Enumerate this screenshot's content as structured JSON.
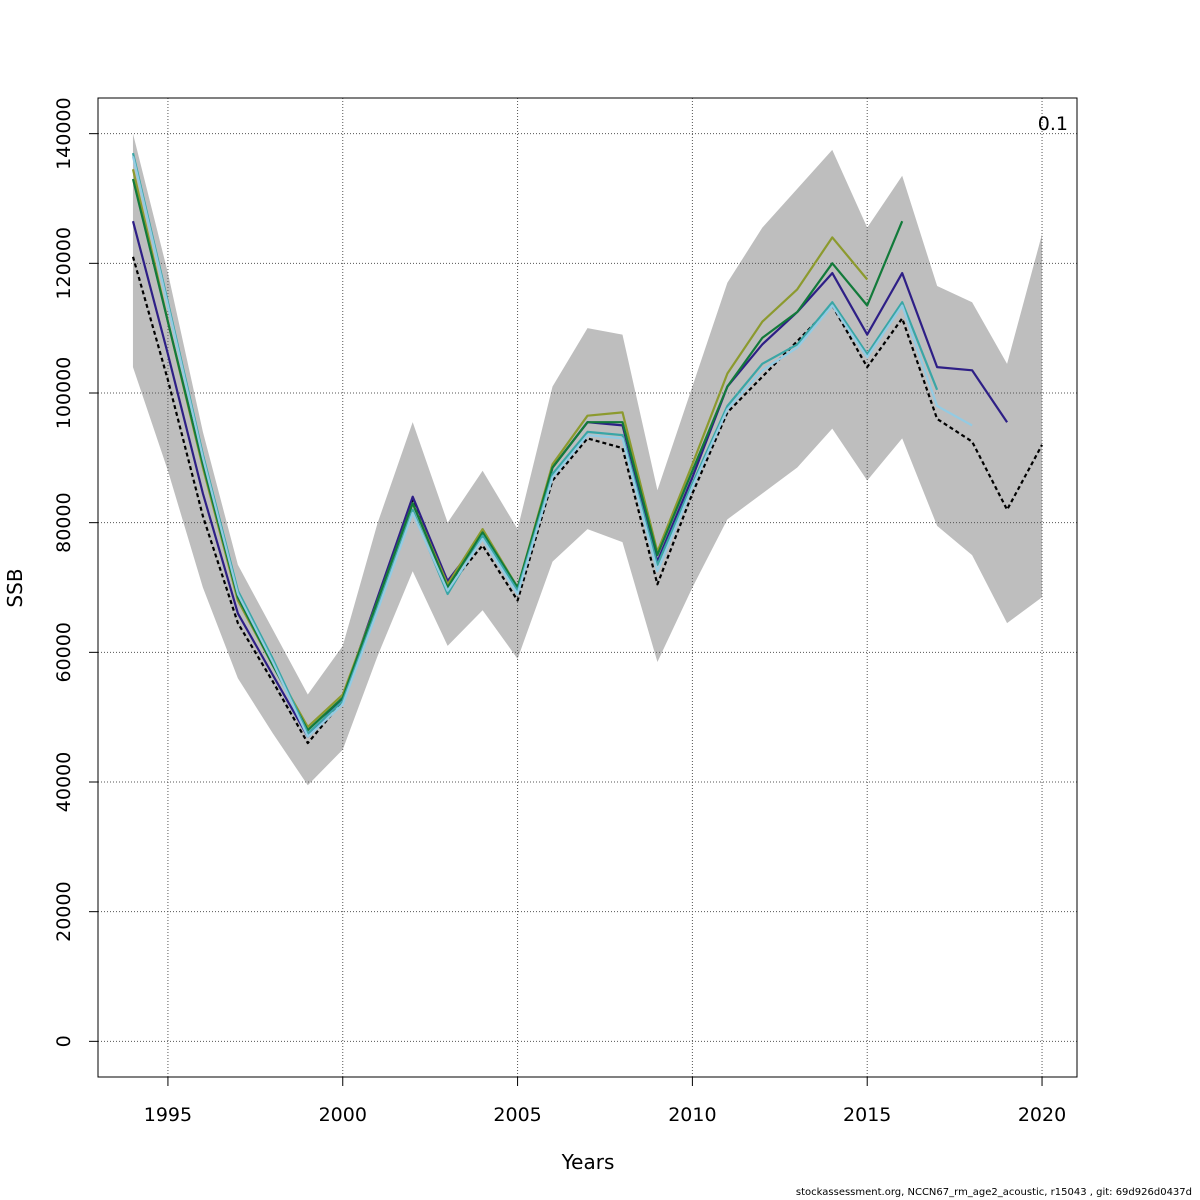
{
  "chart_data": {
    "type": "line",
    "title": "",
    "xlabel": "Years",
    "ylabel": "SSB",
    "xlim": [
      1993,
      2021
    ],
    "ylim": [
      -5500,
      145500
    ],
    "x_ticks": [
      1995,
      2000,
      2005,
      2010,
      2015,
      2020
    ],
    "y_ticks": [
      0,
      20000,
      40000,
      60000,
      80000,
      100000,
      120000,
      140000
    ],
    "grid": true,
    "annotation": "0.1",
    "colors": {
      "band": "#bebebe",
      "base": "#000000",
      "navy": "#2e1f86",
      "olive": "#8c9a2e",
      "green": "#127a3a",
      "teal": "#3aa6a6",
      "lightblue": "#93cbe3"
    },
    "band": {
      "x": [
        1994,
        1995,
        1996,
        1997,
        1998,
        1999,
        2000,
        2001,
        2002,
        2003,
        2004,
        2005,
        2006,
        2007,
        2008,
        2009,
        2010,
        2011,
        2012,
        2013,
        2014,
        2015,
        2016,
        2017,
        2018,
        2019,
        2020
      ],
      "upper": [
        140000,
        118500,
        94000,
        73500,
        63500,
        53500,
        61000,
        80000,
        95500,
        80000,
        88000,
        79000,
        101000,
        110000,
        109000,
        85000,
        101000,
        117000,
        125500,
        131500,
        137500,
        125500,
        133500,
        116500,
        114000,
        104500,
        124500
      ],
      "lower": [
        104000,
        88000,
        70000,
        56000,
        47500,
        39500,
        45000,
        59500,
        72500,
        61000,
        66500,
        59000,
        74000,
        79000,
        77000,
        58500,
        70000,
        80500,
        84500,
        88500,
        94500,
        86500,
        93000,
        79500,
        75000,
        64500,
        68500
      ]
    },
    "series": [
      {
        "color_key": "base",
        "dashed": true,
        "x": [
          1994,
          1995,
          1996,
          1997,
          1998,
          1999,
          2000,
          2001,
          2002,
          2003,
          2004,
          2005,
          2006,
          2007,
          2008,
          2009,
          2010,
          2011,
          2012,
          2013,
          2014,
          2015,
          2016,
          2017,
          2018,
          2019,
          2020
        ],
        "values": [
          121000,
          102000,
          81000,
          64500,
          55500,
          46000,
          52500,
          68000,
          83500,
          70000,
          76500,
          68000,
          86500,
          93000,
          91500,
          70500,
          84500,
          97000,
          102500,
          108000,
          113500,
          104000,
          111500,
          96000,
          92500,
          82000,
          92000
        ]
      },
      {
        "color_key": "navy",
        "dashed": false,
        "x": [
          1994,
          1995,
          1996,
          1997,
          1998,
          1999,
          2000,
          2001,
          2002,
          2003,
          2004,
          2005,
          2006,
          2007,
          2008,
          2009,
          2010,
          2011,
          2012,
          2013,
          2014,
          2015,
          2016,
          2017,
          2018,
          2019
        ],
        "values": [
          126500,
          106000,
          84500,
          66000,
          56500,
          47000,
          53000,
          68500,
          84000,
          71000,
          78000,
          69500,
          88500,
          95500,
          95000,
          74000,
          87000,
          101000,
          107500,
          112500,
          118500,
          109000,
          118500,
          104000,
          103500,
          95500
        ]
      },
      {
        "color_key": "olive",
        "dashed": false,
        "x": [
          1994,
          1995,
          1996,
          1997,
          1998,
          1999,
          2000,
          2001,
          2002,
          2003,
          2004,
          2005,
          2006,
          2007,
          2008,
          2009,
          2010,
          2011,
          2012,
          2013,
          2014,
          2015
        ],
        "values": [
          134500,
          111000,
          88500,
          68000,
          58000,
          48500,
          53500,
          68000,
          83000,
          70500,
          79000,
          70000,
          89000,
          96500,
          97000,
          75500,
          89000,
          103000,
          111000,
          116000,
          124000,
          117500
        ]
      },
      {
        "color_key": "green",
        "dashed": false,
        "x": [
          1994,
          1995,
          1996,
          1997,
          1998,
          1999,
          2000,
          2001,
          2002,
          2003,
          2004,
          2005,
          2006,
          2007,
          2008,
          2009,
          2010,
          2011,
          2012,
          2013,
          2014,
          2015,
          2016
        ],
        "values": [
          133000,
          111000,
          89000,
          68500,
          58000,
          48000,
          53000,
          68000,
          83000,
          70000,
          78500,
          70000,
          88500,
          95500,
          95500,
          75000,
          88000,
          101000,
          108500,
          112500,
          120000,
          113500,
          126500
        ]
      },
      {
        "color_key": "teal",
        "dashed": false,
        "x": [
          1994,
          1995,
          1996,
          1997,
          1998,
          1999,
          2000,
          2001,
          2002,
          2003,
          2004,
          2005,
          2006,
          2007,
          2008,
          2009,
          2010,
          2011,
          2012,
          2013,
          2014,
          2015,
          2016,
          2017
        ],
        "values": [
          137000,
          114000,
          90500,
          69500,
          59000,
          47500,
          52500,
          67000,
          82000,
          69000,
          78000,
          69500,
          87500,
          94000,
          93500,
          73500,
          86000,
          98000,
          104500,
          107500,
          114000,
          106000,
          114000,
          100500
        ]
      },
      {
        "color_key": "lightblue",
        "dashed": false,
        "x": [
          1994,
          1995,
          1996,
          1997,
          1998,
          1999,
          2000,
          2001,
          2002,
          2003,
          2004,
          2005,
          2006,
          2007,
          2008,
          2009,
          2010,
          2011,
          2012,
          2013,
          2014,
          2015,
          2016,
          2017,
          2018
        ],
        "values": [
          136500,
          113500,
          90000,
          69000,
          58500,
          47000,
          52000,
          66500,
          81500,
          69500,
          77500,
          69000,
          87000,
          93500,
          93000,
          72500,
          85500,
          97500,
          103500,
          107000,
          113500,
          105500,
          113500,
          98000,
          95000
        ]
      }
    ]
  },
  "footer": "stockassessment.org, NCCN67_rm_age2_acoustic, r15043 , git: 69d926d0437d"
}
